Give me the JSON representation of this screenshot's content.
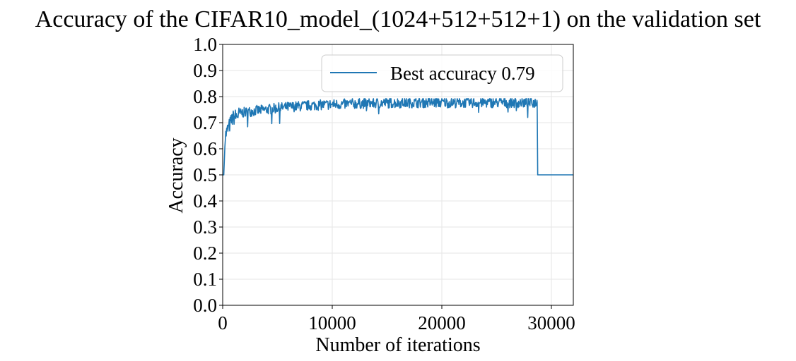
{
  "chart_data": {
    "type": "line",
    "title": "Accuracy of the CIFAR10_model_(1024+512+512+1) on the validation set",
    "xlabel": "Number of iterations",
    "ylabel": "Accuracy",
    "xlim": [
      0,
      32000
    ],
    "ylim": [
      0.0,
      1.0
    ],
    "xticks": [
      0,
      10000,
      20000,
      30000
    ],
    "xtick_labels": [
      "0",
      "10000",
      "20000",
      "30000"
    ],
    "yticks": [
      0.0,
      0.1,
      0.2,
      0.3,
      0.4,
      0.5,
      0.6,
      0.7,
      0.8,
      0.9,
      1.0
    ],
    "ytick_labels": [
      "0.0",
      "0.1",
      "0.2",
      "0.3",
      "0.4",
      "0.5",
      "0.6",
      "0.7",
      "0.8",
      "0.9",
      "1.0"
    ],
    "grid": true,
    "legend_position": "top-right",
    "series": [
      {
        "name": "Best accuracy 0.79",
        "color": "#1f77b4",
        "x": [
          0,
          100,
          200,
          300,
          400,
          500,
          700,
          900,
          1100,
          1300,
          1500,
          1800,
          2100,
          2500,
          3000,
          3500,
          4000,
          4500,
          5000,
          5500,
          6000,
          7000,
          8000,
          9000,
          10000,
          11000,
          12000,
          13000,
          14000,
          15000,
          16000,
          17000,
          18000,
          19000,
          20000,
          21000,
          22000,
          23000,
          24000,
          25000,
          26000,
          27000,
          28000,
          28700,
          28750,
          32000
        ],
        "y": [
          0.5,
          0.5,
          0.64,
          0.66,
          0.67,
          0.68,
          0.7,
          0.72,
          0.725,
          0.73,
          0.735,
          0.74,
          0.742,
          0.745,
          0.748,
          0.75,
          0.752,
          0.755,
          0.758,
          0.76,
          0.762,
          0.765,
          0.768,
          0.77,
          0.772,
          0.773,
          0.775,
          0.776,
          0.777,
          0.778,
          0.778,
          0.779,
          0.779,
          0.779,
          0.779,
          0.779,
          0.779,
          0.779,
          0.779,
          0.779,
          0.779,
          0.779,
          0.779,
          0.779,
          0.5,
          0.5
        ]
      }
    ]
  }
}
